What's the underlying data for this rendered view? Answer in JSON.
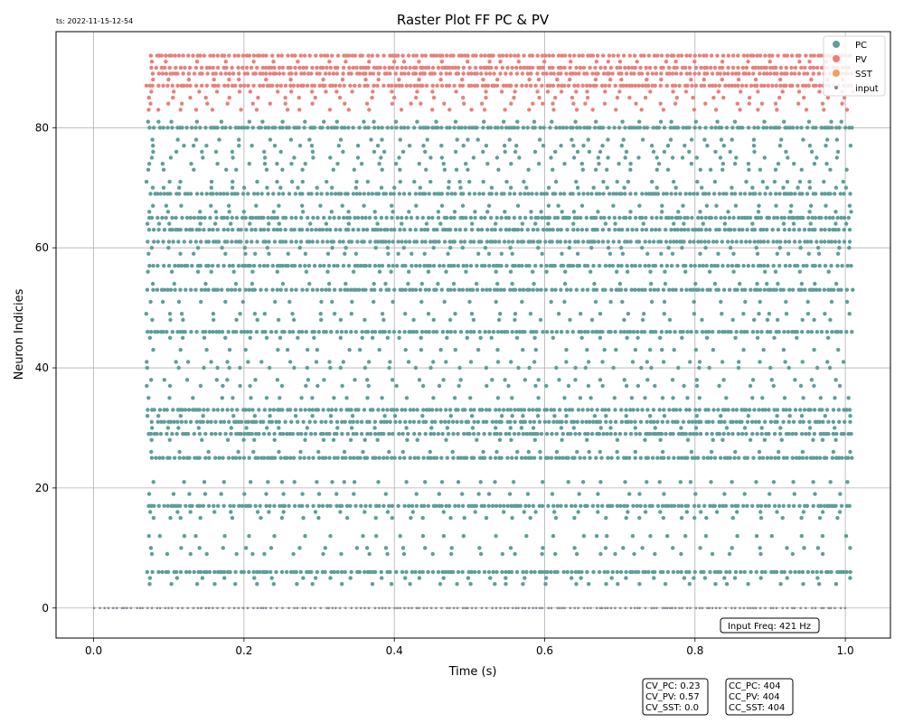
{
  "timestamp": "ts: 2022-11-15-12-54",
  "chart_data": {
    "type": "scatter",
    "title": "Raster Plot FF PC & PV",
    "xlabel": "Time (s)",
    "ylabel": "Neuron Indicies",
    "xlim": [
      -0.05,
      1.06
    ],
    "ylim": [
      -5,
      96
    ],
    "xticks": [
      0.0,
      0.2,
      0.4,
      0.6,
      0.8,
      1.0
    ],
    "xtick_labels": [
      "0.0",
      "0.2",
      "0.4",
      "0.6",
      "0.8",
      "1.0"
    ],
    "yticks": [
      0,
      20,
      40,
      60,
      80
    ],
    "ytick_labels": [
      "0",
      "20",
      "40",
      "60",
      "80"
    ],
    "grid": true,
    "legend_position": "top-right",
    "time_window": [
      0.07,
      1.01
    ],
    "series": [
      {
        "name": "PC",
        "color": "#5f9e9a",
        "neuron_rows": [
          4,
          5,
          6,
          9,
          10,
          12,
          15,
          16,
          17,
          19,
          21,
          25,
          26,
          28,
          29,
          30,
          31,
          32,
          33,
          35,
          37,
          38,
          40,
          41,
          43,
          45,
          46,
          48,
          49,
          51,
          53,
          54,
          56,
          57,
          59,
          60,
          61,
          63,
          64,
          65,
          66,
          67,
          69,
          70,
          71,
          73,
          74,
          75,
          76,
          77,
          78,
          80,
          81
        ],
        "dense_rows": [
          6,
          17,
          25,
          29,
          31,
          33,
          46,
          53,
          57,
          61,
          63,
          65,
          69,
          80
        ],
        "marker_size": 2.2
      },
      {
        "name": "PV",
        "color": "#e8807b",
        "neuron_rows": [
          83,
          84,
          85,
          86,
          87,
          88,
          89,
          90,
          91,
          92
        ],
        "dense_rows": [
          87,
          89,
          90,
          92
        ],
        "marker_size": 2.2
      },
      {
        "name": "SST",
        "color": "#f0a35e",
        "neuron_rows": [],
        "dense_rows": [],
        "marker_size": 2.2
      },
      {
        "name": "input",
        "color": "#808a99",
        "neuron_rows": [
          0
        ],
        "dense_rows": [
          0
        ],
        "time_window": [
          0.0,
          1.0
        ],
        "marker_size": 1.3
      }
    ],
    "annotations": {
      "input_freq": "Input Freq: 421 Hz",
      "cv": [
        "CV_PC: 0.23",
        "CV_PV: 0.57",
        "CV_SST: 0.0"
      ],
      "cc": [
        "CC_PC: 404",
        "CC_PV: 404",
        "CC_SST: 404"
      ]
    }
  }
}
